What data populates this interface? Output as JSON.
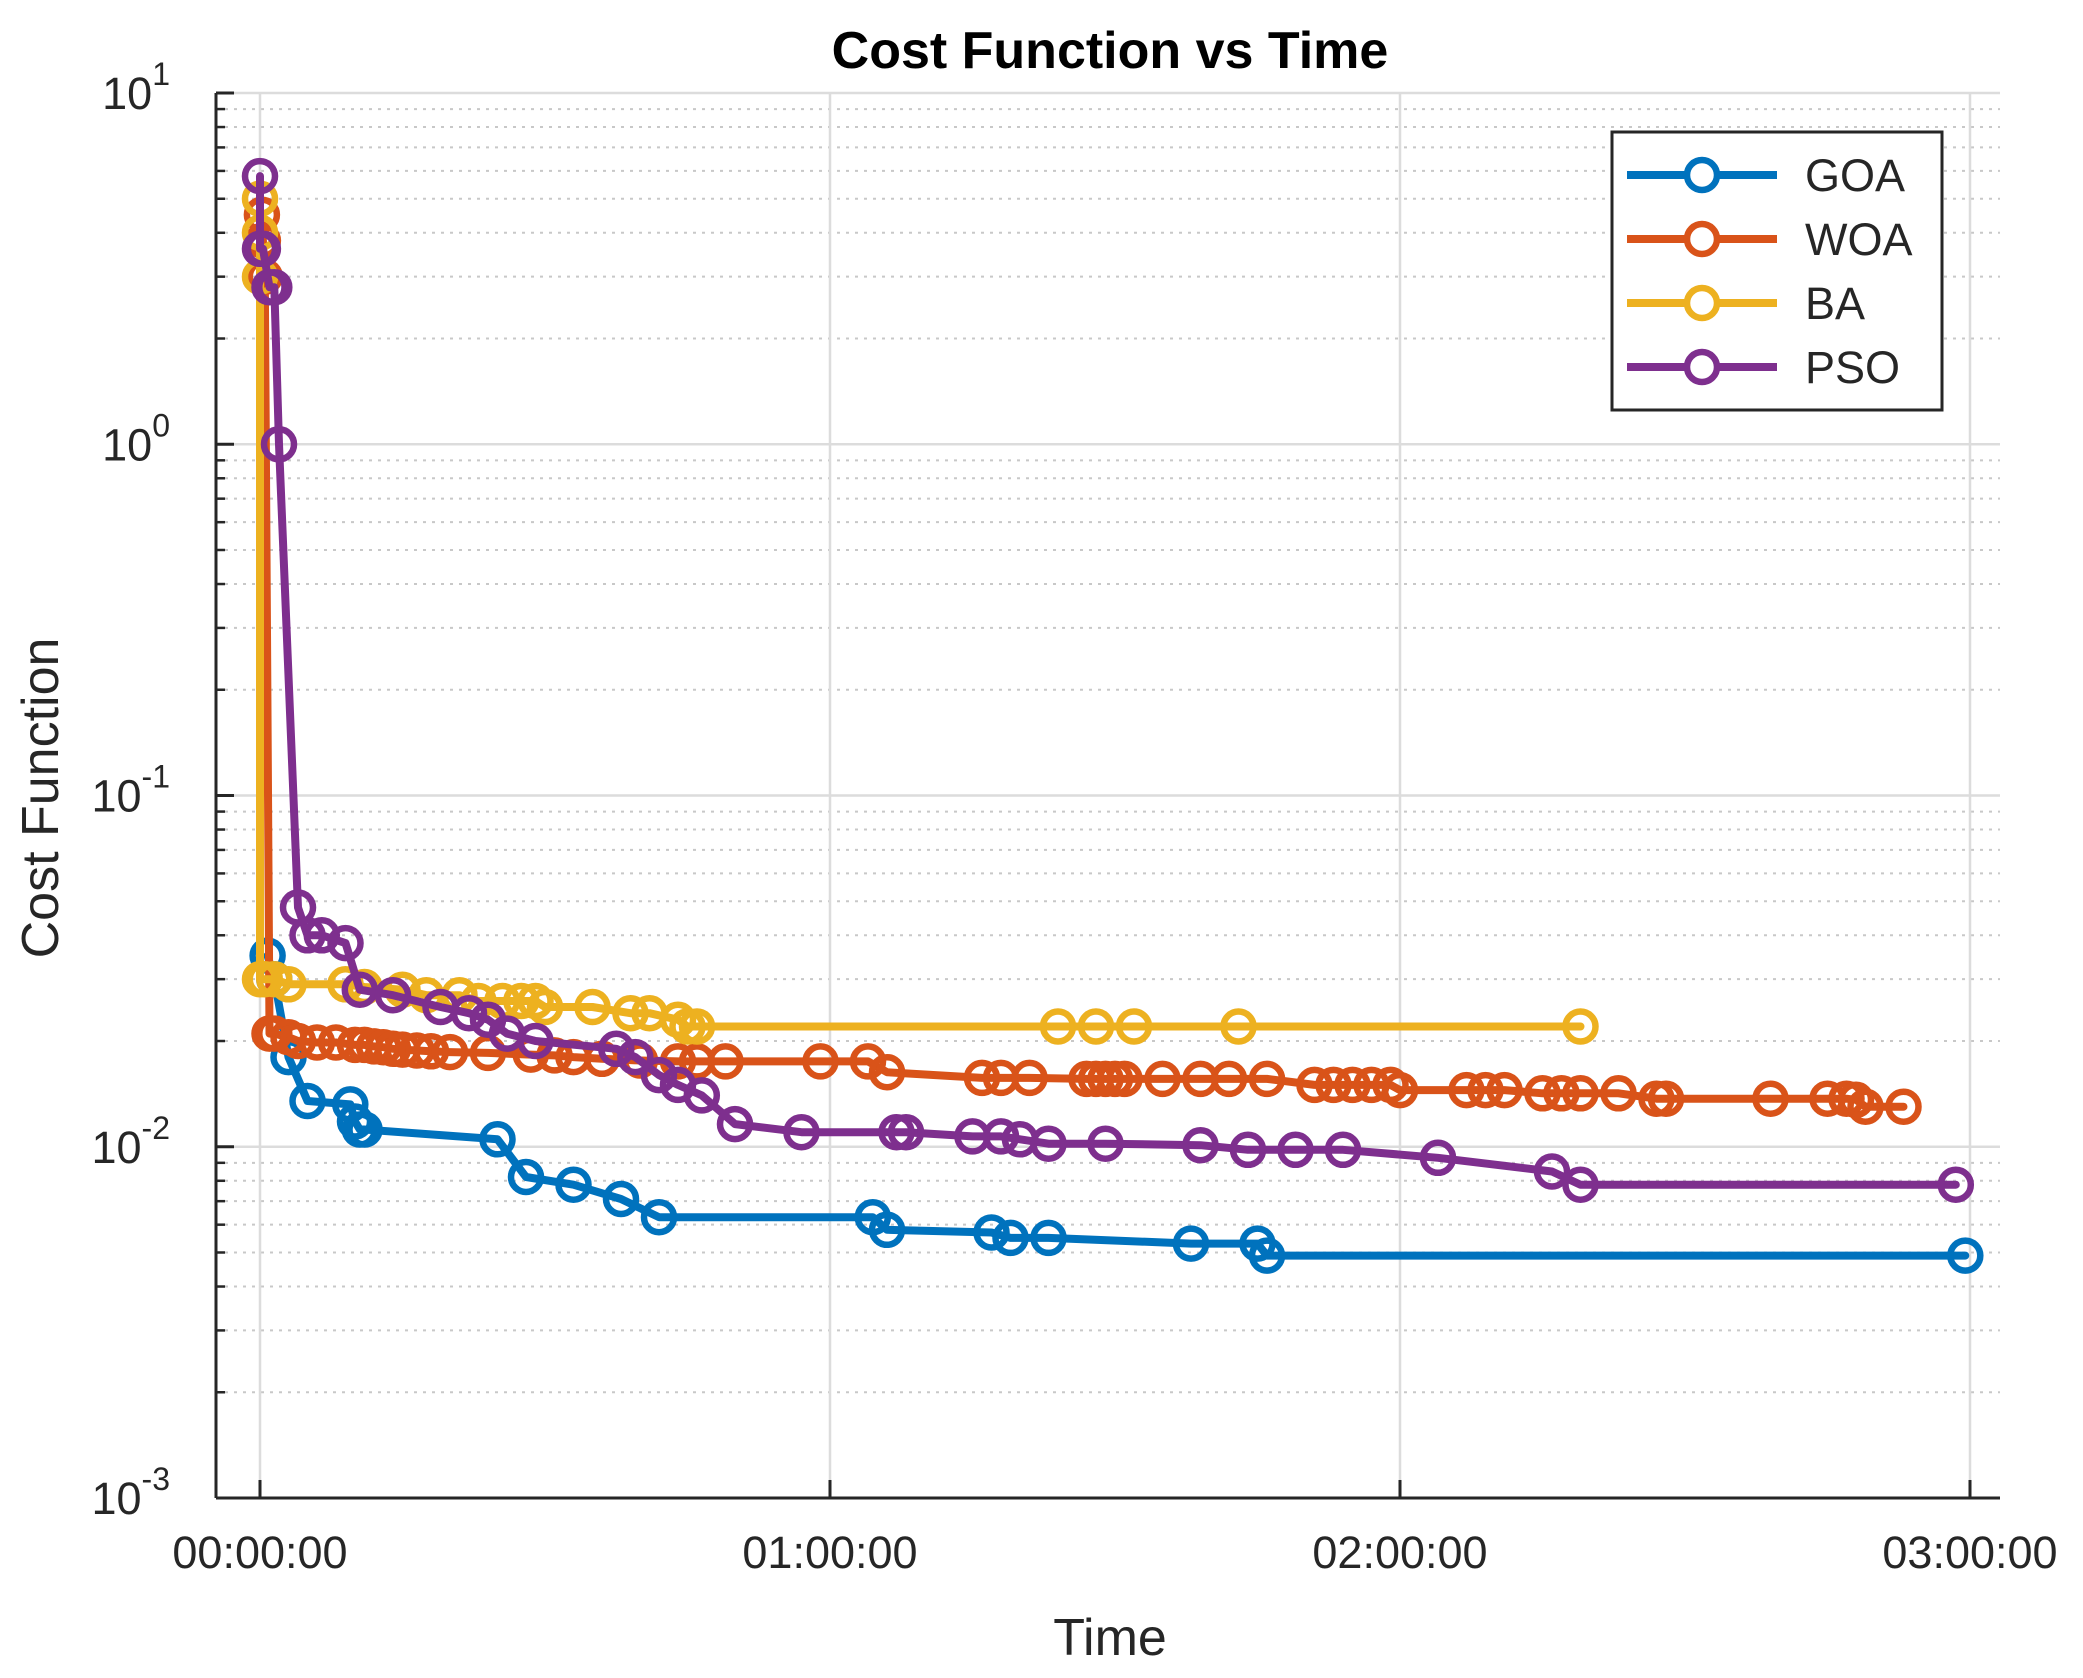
{
  "chart_data": {
    "type": "line",
    "title": "Cost Function vs Time",
    "xlabel": "Time",
    "ylabel": "Cost Function",
    "x_unit": "minutes",
    "xlim": [
      0,
      180
    ],
    "ylim": [
      0.001,
      10
    ],
    "yscale": "log",
    "grid": true,
    "legend_position": "top-right",
    "x_ticks": [
      {
        "value": 0,
        "label": "00:00:00"
      },
      {
        "value": 60,
        "label": "01:00:00"
      },
      {
        "value": 120,
        "label": "02:00:00"
      },
      {
        "value": 180,
        "label": "03:00:00"
      }
    ],
    "y_ticks": [
      {
        "value": 0.001,
        "base": "10",
        "exp": "-3"
      },
      {
        "value": 0.01,
        "base": "10",
        "exp": "-2"
      },
      {
        "value": 0.1,
        "base": "10",
        "exp": "-1"
      },
      {
        "value": 1,
        "base": "10",
        "exp": "0"
      },
      {
        "value": 10,
        "base": "10",
        "exp": "1"
      }
    ],
    "series": [
      {
        "name": "GOA",
        "color": "#0072BD",
        "x": [
          0.8,
          1.5,
          3,
          5,
          9.5,
          10,
          10.5,
          11,
          25,
          28,
          33,
          38,
          42,
          64.5,
          66,
          77,
          79,
          83,
          98,
          105,
          106,
          179.5
        ],
        "y": [
          0.035,
          0.03,
          0.018,
          0.0135,
          0.0132,
          0.0118,
          0.0112,
          0.0112,
          0.0105,
          0.0082,
          0.0078,
          0.0071,
          0.0063,
          0.0063,
          0.0058,
          0.0057,
          0.0055,
          0.0055,
          0.0053,
          0.0053,
          0.0049,
          0.0049
        ]
      },
      {
        "name": "WOA",
        "color": "#D95319",
        "x": [
          0.2,
          0.3,
          0.5,
          1,
          1.5,
          3,
          4,
          6,
          8,
          10,
          11,
          12,
          13,
          14,
          15,
          16.5,
          18,
          20,
          24,
          28.5,
          31,
          33,
          36,
          40,
          44,
          46,
          49,
          59,
          64,
          66,
          76,
          78,
          81,
          87,
          88,
          89,
          90,
          91,
          95,
          99,
          102,
          106,
          111,
          113,
          115,
          117,
          119,
          120,
          127,
          129,
          131,
          135,
          137,
          139,
          143,
          147,
          148,
          159,
          165,
          167,
          168,
          169,
          173
        ],
        "y": [
          4.5,
          3.8,
          3.0,
          0.021,
          0.021,
          0.0205,
          0.02,
          0.0198,
          0.0198,
          0.0195,
          0.0195,
          0.0193,
          0.0192,
          0.019,
          0.0189,
          0.0188,
          0.0187,
          0.0186,
          0.0185,
          0.0183,
          0.0182,
          0.018,
          0.0178,
          0.0176,
          0.0175,
          0.0175,
          0.0175,
          0.0175,
          0.0175,
          0.0163,
          0.0157,
          0.0157,
          0.0157,
          0.0156,
          0.0156,
          0.0156,
          0.0156,
          0.0156,
          0.0156,
          0.0156,
          0.0156,
          0.0156,
          0.015,
          0.015,
          0.015,
          0.015,
          0.015,
          0.0145,
          0.0145,
          0.0145,
          0.0145,
          0.0142,
          0.0142,
          0.0142,
          0.0142,
          0.0137,
          0.0137,
          0.0137,
          0.0137,
          0.0137,
          0.0136,
          0.013,
          0.013
        ]
      },
      {
        "name": "BA",
        "color": "#EDB120",
        "x": [
          0,
          0,
          0,
          0,
          0.5,
          1.5,
          3,
          9,
          11,
          15,
          17.5,
          21,
          23,
          25.5,
          27.5,
          29,
          30,
          35,
          39,
          41,
          44,
          45,
          46,
          84,
          88,
          92,
          103,
          139
        ],
        "y": [
          5.0,
          4.0,
          3.0,
          0.03,
          0.03,
          0.03,
          0.029,
          0.029,
          0.0285,
          0.028,
          0.027,
          0.027,
          0.026,
          0.026,
          0.026,
          0.026,
          0.025,
          0.025,
          0.024,
          0.024,
          0.023,
          0.022,
          0.022,
          0.022,
          0.022,
          0.022,
          0.022,
          0.022
        ]
      },
      {
        "name": "PSO",
        "color": "#7E2F8E",
        "x": [
          0,
          0,
          0.3,
          1,
          1.5,
          2,
          4,
          5,
          6.5,
          9,
          10.5,
          14,
          19,
          22,
          24,
          26,
          29,
          37.5,
          39.5,
          42,
          44,
          46.5,
          50,
          57,
          67,
          68,
          75,
          78,
          80,
          83,
          89,
          99,
          104,
          109,
          114,
          124,
          136,
          139,
          178.5
        ],
        "y": [
          5.8,
          3.6,
          3.6,
          2.8,
          2.8,
          1.0,
          0.048,
          0.04,
          0.04,
          0.038,
          0.028,
          0.027,
          0.025,
          0.024,
          0.023,
          0.021,
          0.02,
          0.019,
          0.018,
          0.016,
          0.015,
          0.014,
          0.0116,
          0.011,
          0.011,
          0.011,
          0.0107,
          0.0107,
          0.0105,
          0.0102,
          0.0102,
          0.0101,
          0.0098,
          0.0098,
          0.0098,
          0.0093,
          0.0085,
          0.0078,
          0.0078
        ]
      }
    ]
  }
}
